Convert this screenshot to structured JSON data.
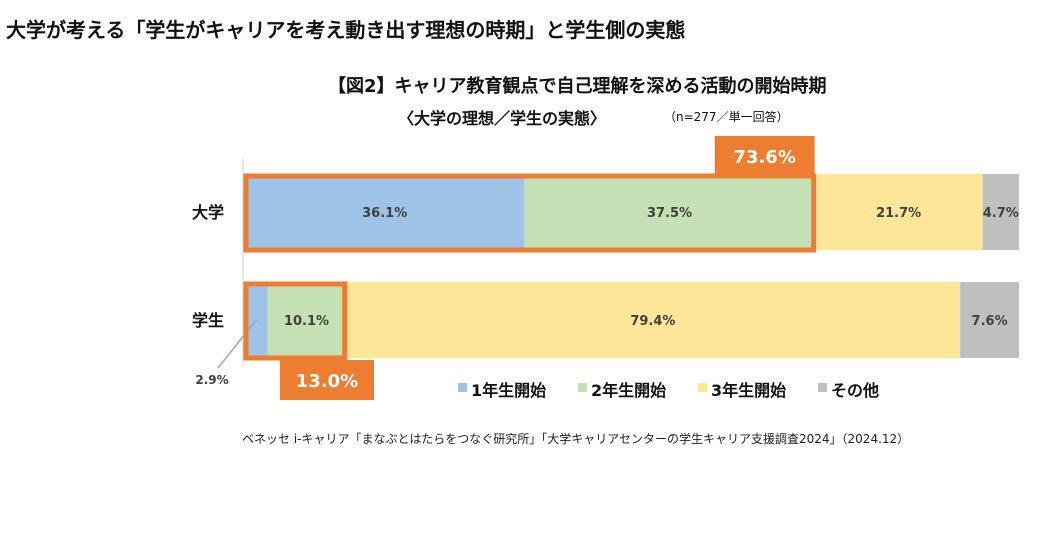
{
  "header": {
    "title": "大学が考える「学生がキャリアを考え動き出す理想の時期」と学生側の実態"
  },
  "chart_data": {
    "type": "bar",
    "orientation": "horizontal-stacked-100",
    "title": "【図2】キャリア教育観点で自己理解を深める活動の開始時期",
    "subtitle": "〈大学の理想／学生の実態〉",
    "note": "（n=277／単一回答）",
    "categories": [
      "大学",
      "学生"
    ],
    "series": [
      {
        "name": "1年生開始",
        "color": "#9dc3e6",
        "values": [
          36.1,
          2.9
        ],
        "labels": [
          "36.1%",
          "2.9%"
        ]
      },
      {
        "name": "2年生開始",
        "color": "#c5e0b4",
        "values": [
          37.5,
          10.1
        ],
        "labels": [
          "37.5%",
          "10.1%"
        ]
      },
      {
        "name": "3年生開始",
        "color": "#ffe699",
        "values": [
          21.7,
          79.4
        ],
        "labels": [
          "21.7%",
          "79.4%"
        ]
      },
      {
        "name": "その他",
        "color": "#bfbfbf",
        "values": [
          4.7,
          7.6
        ],
        "labels": [
          "4.7%",
          "7.6%"
        ]
      }
    ],
    "highlights": [
      {
        "category": "大学",
        "label": "73.6%",
        "series_count": 2
      },
      {
        "category": "学生",
        "label": "13.0%",
        "series_count": 2
      }
    ],
    "highlight_color": "#ed7d31",
    "xlim": [
      0,
      100
    ],
    "legend": "bottom"
  },
  "source": "ベネッセ i-キャリア「まなぶとはたらをつなぐ研究所」「大学キャリアセンターの学生キャリア支援調査2024」（2024.12）"
}
